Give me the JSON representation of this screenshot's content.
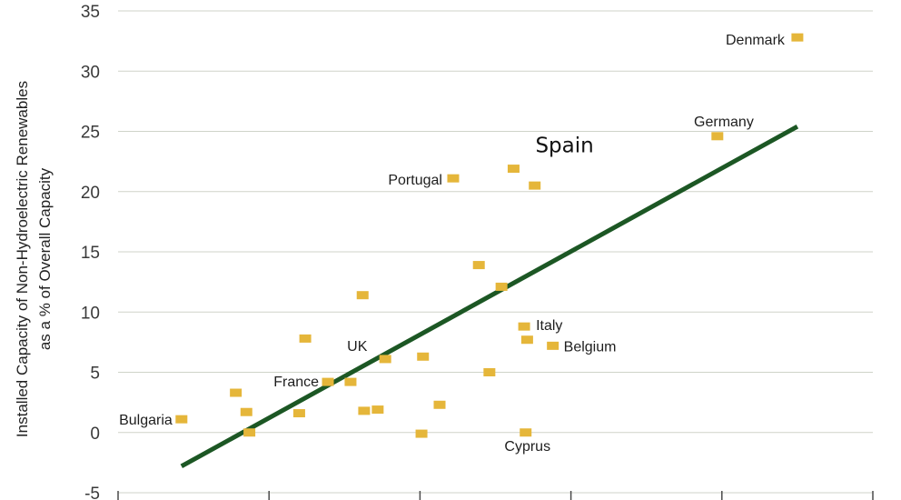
{
  "chart_data": {
    "type": "scatter",
    "title": "",
    "xlabel": "",
    "ylabel_lines": [
      "Installed Capacity of Non-Hydroelectric Renewables",
      "as a % of Overall Capacity"
    ],
    "ylim": [
      -5,
      35
    ],
    "xlim": [
      0,
      5
    ],
    "yticks": [
      "-5",
      "0",
      "5",
      "10",
      "15",
      "20",
      "25",
      "30",
      "35"
    ],
    "grid": true,
    "colors": {
      "point": "#e5b63a",
      "trend": "#1c5724",
      "grid": "#cfd3c9"
    },
    "points": [
      {
        "x": 4.5,
        "y": 32.8,
        "label": "Denmark"
      },
      {
        "x": 3.97,
        "y": 24.6,
        "label": "Germany"
      },
      {
        "x": 2.62,
        "y": 21.9,
        "label": "Spain"
      },
      {
        "x": 2.76,
        "y": 20.5,
        "label": ""
      },
      {
        "x": 2.22,
        "y": 21.1,
        "label": "Portugal"
      },
      {
        "x": 2.39,
        "y": 13.9,
        "label": ""
      },
      {
        "x": 2.54,
        "y": 12.1,
        "label": ""
      },
      {
        "x": 1.62,
        "y": 11.4,
        "label": ""
      },
      {
        "x": 2.69,
        "y": 8.8,
        "label": "Italy"
      },
      {
        "x": 2.71,
        "y": 7.7,
        "label": ""
      },
      {
        "x": 2.88,
        "y": 7.2,
        "label": "Belgium"
      },
      {
        "x": 1.24,
        "y": 7.8,
        "label": ""
      },
      {
        "x": 1.77,
        "y": 6.1,
        "label": "UK"
      },
      {
        "x": 2.02,
        "y": 6.3,
        "label": ""
      },
      {
        "x": 2.46,
        "y": 5.0,
        "label": ""
      },
      {
        "x": 1.39,
        "y": 4.2,
        "label": "France"
      },
      {
        "x": 1.54,
        "y": 4.2,
        "label": ""
      },
      {
        "x": 0.78,
        "y": 3.3,
        "label": ""
      },
      {
        "x": 2.13,
        "y": 2.3,
        "label": ""
      },
      {
        "x": 0.85,
        "y": 1.7,
        "label": ""
      },
      {
        "x": 1.2,
        "y": 1.6,
        "label": ""
      },
      {
        "x": 1.63,
        "y": 1.8,
        "label": ""
      },
      {
        "x": 1.72,
        "y": 1.9,
        "label": ""
      },
      {
        "x": 0.42,
        "y": 1.1,
        "label": "Bulgaria"
      },
      {
        "x": 0.87,
        "y": 0.0,
        "label": ""
      },
      {
        "x": 2.01,
        "y": -0.1,
        "label": ""
      },
      {
        "x": 2.7,
        "y": 0.0,
        "label": "Cyprus"
      }
    ],
    "trendline": {
      "x": [
        0.42,
        4.5
      ],
      "y": [
        -2.8,
        25.4
      ]
    }
  }
}
